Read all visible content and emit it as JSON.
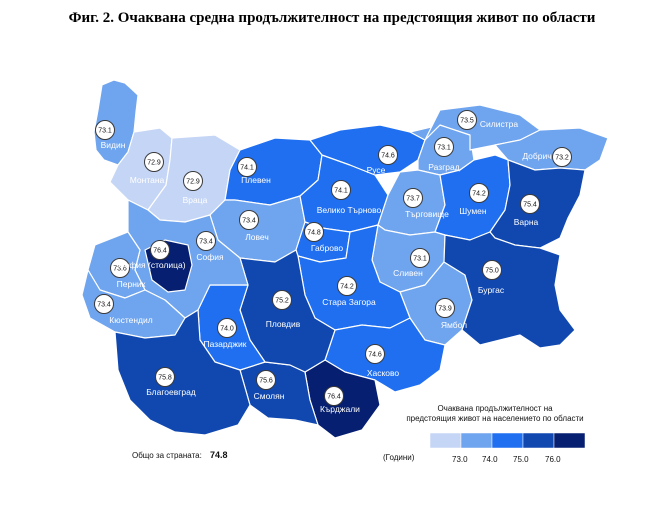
{
  "title": "Фиг. 2. Очаквана средна продължителност на предстоящия живот по области",
  "legend": {
    "title_line1": "Очаквана продължителност на",
    "title_line2": "предстоящия живот на населението по области",
    "unit": "(Години)",
    "ticks": [
      "73.0",
      "74.0",
      "75.0",
      "76.0"
    ],
    "colors": [
      "#c5d5f5",
      "#6fa4ee",
      "#1f6ff0",
      "#1048b0",
      "#061f70"
    ]
  },
  "total": {
    "label": "Общо за страната:",
    "value": "74.8"
  },
  "regions": [
    {
      "id": "vidin",
      "name": "Видин",
      "value": "73.1",
      "class": 1
    },
    {
      "id": "montana",
      "name": "Монтана",
      "value": "72.9",
      "class": 0
    },
    {
      "id": "vratsa",
      "name": "Враца",
      "value": "72.9",
      "class": 0
    },
    {
      "id": "pleven",
      "name": "Плевен",
      "value": "74.1",
      "class": 2
    },
    {
      "id": "lovech",
      "name": "Ловеч",
      "value": "73.4",
      "class": 1
    },
    {
      "id": "veliko",
      "name": "Велико Търново",
      "value": "74.1",
      "class": 2
    },
    {
      "id": "gabrovo",
      "name": "Габрово",
      "value": "74.8",
      "class": 2
    },
    {
      "id": "ruse",
      "name": "Русе",
      "value": "74.6",
      "class": 2
    },
    {
      "id": "razgrad",
      "name": "Разград",
      "value": "73.1",
      "class": 1
    },
    {
      "id": "silistra",
      "name": "Силистра",
      "value": "73.5",
      "class": 1
    },
    {
      "id": "dobrich",
      "name": "Добрич",
      "value": "73.2",
      "class": 1
    },
    {
      "id": "targovishte",
      "name": "Търговище",
      "value": "73.7",
      "class": 1
    },
    {
      "id": "shumen",
      "name": "Шумен",
      "value": "74.2",
      "class": 2
    },
    {
      "id": "varna",
      "name": "Варна",
      "value": "75.4",
      "class": 3
    },
    {
      "id": "sliven",
      "name": "Сливен",
      "value": "73.1",
      "class": 1
    },
    {
      "id": "yambol",
      "name": "Ямбол",
      "value": "73.9",
      "class": 1
    },
    {
      "id": "burgas",
      "name": "Бургас",
      "value": "75.0",
      "class": 3
    },
    {
      "id": "stara",
      "name": "Стара Загора",
      "value": "74.2",
      "class": 2
    },
    {
      "id": "haskovo",
      "name": "Хасково",
      "value": "74.6",
      "class": 2
    },
    {
      "id": "kardzhali",
      "name": "Кърджали",
      "value": "76.4",
      "class": 4
    },
    {
      "id": "smolyan",
      "name": "Смолян",
      "value": "75.6",
      "class": 3
    },
    {
      "id": "plovdiv",
      "name": "Пловдив",
      "value": "75.2",
      "class": 3
    },
    {
      "id": "pazardzhik",
      "name": "Пазарджик",
      "value": "74.0",
      "class": 2
    },
    {
      "id": "sofia_obl",
      "name": "София",
      "value": "73.4",
      "class": 1
    },
    {
      "id": "sofia_city",
      "name": "София (столица)",
      "value": "76.4",
      "class": 4
    },
    {
      "id": "pernik",
      "name": "Перник",
      "value": "73.6",
      "class": 1
    },
    {
      "id": "kyustendil",
      "name": "Кюстендил",
      "value": "73.4",
      "class": 1
    },
    {
      "id": "blagoevgrad",
      "name": "Благоевград",
      "value": "75.8",
      "class": 3
    }
  ]
}
